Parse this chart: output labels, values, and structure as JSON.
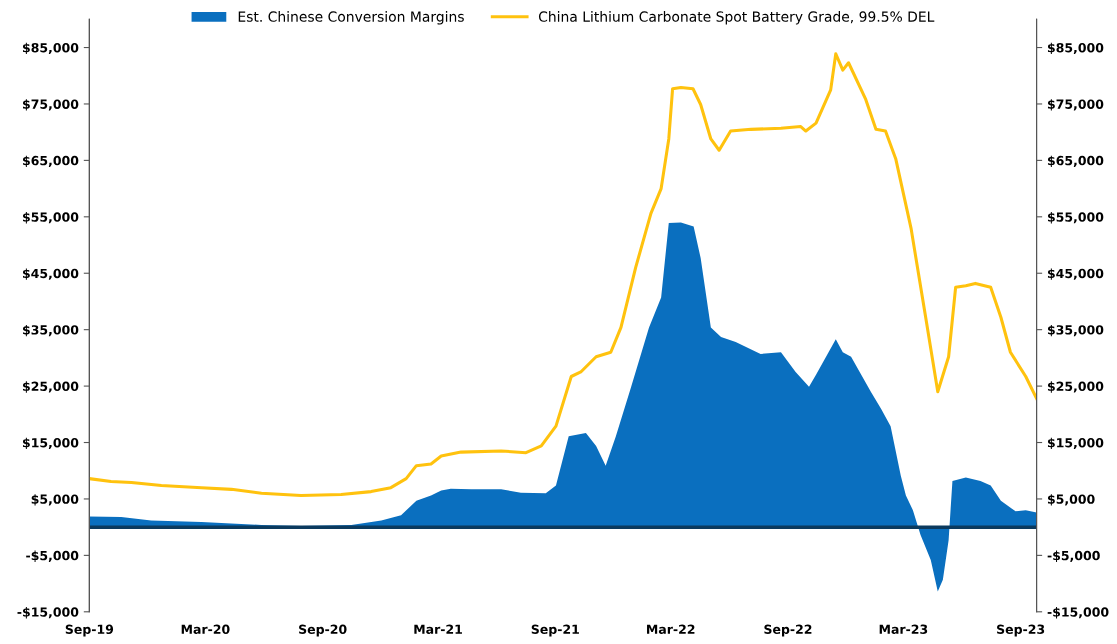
{
  "chart_data": {
    "type": "area",
    "series": [
      {
        "name": "Est. Chinese Conversion Margins",
        "color": "#0a6fbf",
        "x": [
          "2019-09-01",
          "2019-10-21",
          "2019-12-07",
          "2020-02-24",
          "2020-05-28",
          "2020-07-29",
          "2020-10-16",
          "2020-12-02",
          "2021-01-02",
          "2021-01-26",
          "2021-02-18",
          "2021-03-06",
          "2021-03-21",
          "2021-04-22",
          "2021-06-08",
          "2021-07-09",
          "2021-08-17",
          "2021-09-02",
          "2021-09-22",
          "2021-10-19",
          "2021-11-04",
          "2021-11-19",
          "2021-12-05",
          "2021-12-29",
          "2022-01-26",
          "2022-02-14",
          "2022-02-26",
          "2022-03-17",
          "2022-04-06",
          "2022-04-17",
          "2022-05-03",
          "2022-05-19",
          "2022-06-11",
          "2022-07-20",
          "2022-08-21",
          "2022-09-13",
          "2022-10-04",
          "2022-10-15",
          "2022-11-15",
          "2022-11-26",
          "2022-12-09",
          "2023-01-09",
          "2023-01-25",
          "2023-02-09",
          "2023-02-25",
          "2023-03-05",
          "2023-03-16",
          "2023-03-28",
          "2023-04-13",
          "2023-04-24",
          "2023-05-02",
          "2023-05-11",
          "2023-05-17",
          "2023-06-07",
          "2023-06-30",
          "2023-07-16",
          "2023-08-01",
          "2023-08-24",
          "2023-09-09",
          "2023-09-26"
        ],
        "values": [
          1900,
          1800,
          1200,
          900,
          400,
          200,
          400,
          1200,
          2100,
          4700,
          5600,
          6500,
          6800,
          6700,
          6700,
          6100,
          6000,
          7400,
          16100,
          16700,
          14400,
          10900,
          16100,
          24900,
          35400,
          40700,
          53900,
          54000,
          53300,
          47700,
          35400,
          33700,
          32800,
          30700,
          31000,
          27500,
          24900,
          27000,
          33300,
          31000,
          30200,
          24000,
          21000,
          17900,
          9100,
          5600,
          3000,
          -1400,
          -5800,
          -11400,
          -9300,
          -2300,
          8200,
          8800,
          8200,
          7400,
          4700,
          2800,
          3000,
          2600
        ]
      },
      {
        "name": "China Lithium Carbonate Spot Battery Grade, 99.5% DEL",
        "type": "line",
        "color": "#ffc20e",
        "x": [
          "2019-09-01",
          "2019-10-05",
          "2019-11-06",
          "2019-12-23",
          "2020-02-24",
          "2020-04-11",
          "2020-05-28",
          "2020-07-29",
          "2020-09-30",
          "2020-11-16",
          "2020-12-17",
          "2021-01-10",
          "2021-01-26",
          "2021-02-18",
          "2021-03-06",
          "2021-04-06",
          "2021-06-08",
          "2021-07-17",
          "2021-08-10",
          "2021-09-02",
          "2021-09-26",
          "2021-10-11",
          "2021-11-04",
          "2021-11-27",
          "2021-12-13",
          "2022-01-05",
          "2022-01-29",
          "2022-02-14",
          "2022-02-26",
          "2022-03-04",
          "2022-03-17",
          "2022-04-05",
          "2022-04-17",
          "2022-05-03",
          "2022-05-16",
          "2022-06-03",
          "2022-07-05",
          "2022-08-21",
          "2022-09-21",
          "2022-09-29",
          "2022-10-15",
          "2022-11-07",
          "2022-11-15",
          "2022-11-26",
          "2022-12-05",
          "2023-01-01",
          "2023-01-17",
          "2023-02-01",
          "2023-02-17",
          "2023-03-13",
          "2023-04-05",
          "2023-04-24",
          "2023-05-11",
          "2023-05-22",
          "2023-06-07",
          "2023-06-22",
          "2023-07-16",
          "2023-08-01",
          "2023-08-16",
          "2023-09-09",
          "2023-09-26"
        ],
        "values": [
          8600,
          8100,
          7900,
          7400,
          7000,
          6700,
          6000,
          5600,
          5800,
          6300,
          7000,
          8600,
          10900,
          11200,
          12600,
          13300,
          13500,
          13200,
          14400,
          17900,
          26700,
          27500,
          30200,
          31000,
          35400,
          46000,
          55600,
          60000,
          68800,
          77700,
          77900,
          77700,
          74900,
          68800,
          66800,
          70200,
          70500,
          70700,
          71000,
          70200,
          71600,
          77500,
          83900,
          81000,
          82300,
          75800,
          70500,
          70200,
          65300,
          53000,
          37200,
          24000,
          30200,
          42500,
          42800,
          43200,
          42500,
          37200,
          31000,
          26700,
          22800
        ]
      }
    ],
    "xlim": [
      "2019-09-01",
      "2023-09-26"
    ],
    "xticks": [
      {
        "value": "2019-09-01",
        "label": "Sep-19"
      },
      {
        "value": "2020-03-01",
        "label": "Mar-20"
      },
      {
        "value": "2020-09-01",
        "label": "Sep-20"
      },
      {
        "value": "2021-03-01",
        "label": "Mar-21"
      },
      {
        "value": "2021-09-01",
        "label": "Sep-21"
      },
      {
        "value": "2022-03-01",
        "label": "Mar-22"
      },
      {
        "value": "2022-09-01",
        "label": "Sep-22"
      },
      {
        "value": "2023-03-01",
        "label": "Mar-23"
      },
      {
        "value": "2023-09-01",
        "label": "Sep-23"
      }
    ],
    "ylim": [
      -15000,
      90000
    ],
    "yticks": [
      {
        "value": -15000,
        "label": "-$15,000"
      },
      {
        "value": -5000,
        "label": "-$5,000"
      },
      {
        "value": 5000,
        "label": "$5,000"
      },
      {
        "value": 15000,
        "label": "$15,000"
      },
      {
        "value": 25000,
        "label": "$25,000"
      },
      {
        "value": 35000,
        "label": "$35,000"
      },
      {
        "value": 45000,
        "label": "$45,000"
      },
      {
        "value": 55000,
        "label": "$55,000"
      },
      {
        "value": 65000,
        "label": "$65,000"
      },
      {
        "value": 75000,
        "label": "$75,000"
      },
      {
        "value": 85000,
        "label": "$85,000"
      }
    ],
    "y2lim": [
      -15000,
      90000
    ],
    "y2ticks": [
      {
        "value": -15000,
        "label": "-$15,000"
      },
      {
        "value": -5000,
        "label": "-$5,000"
      },
      {
        "value": 5000,
        "label": "$5,000"
      },
      {
        "value": 15000,
        "label": "$15,000"
      },
      {
        "value": 25000,
        "label": "$25,000"
      },
      {
        "value": 35000,
        "label": "$35,000"
      },
      {
        "value": 45000,
        "label": "$45,000"
      },
      {
        "value": 55000,
        "label": "$55,000"
      },
      {
        "value": 65000,
        "label": "$65,000"
      },
      {
        "value": 75000,
        "label": "$75,000"
      },
      {
        "value": 85000,
        "label": "$85,000"
      }
    ],
    "ref_lines": [
      {
        "axis": "y",
        "value": 0,
        "color": "#0b3a5e"
      }
    ],
    "legend": "top",
    "grid": false,
    "line_style": "solid",
    "marker": "none"
  }
}
